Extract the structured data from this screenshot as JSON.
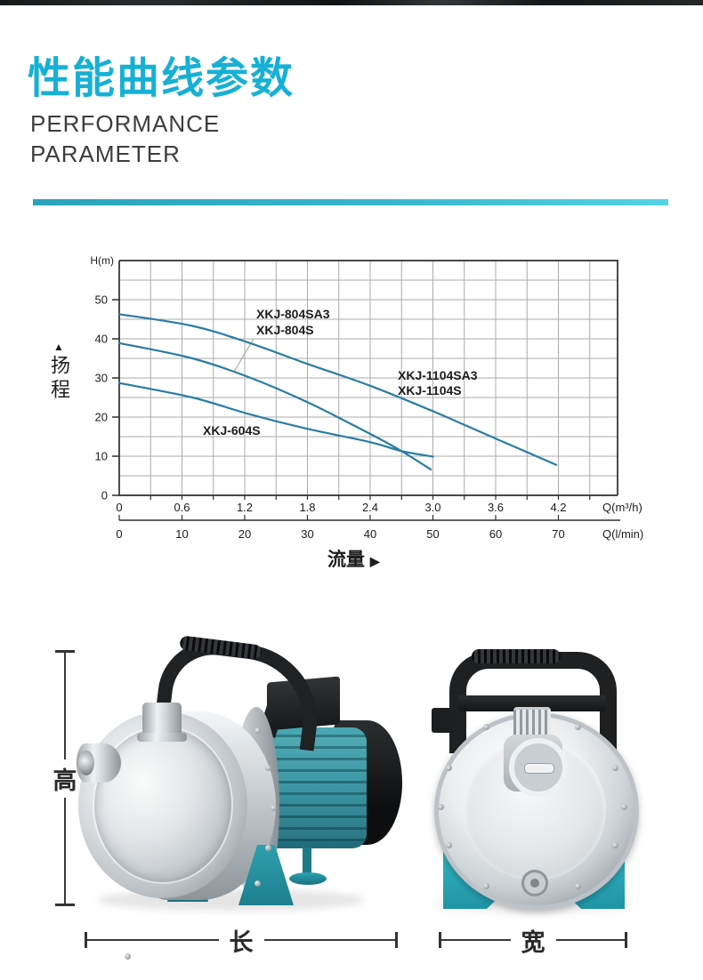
{
  "page": {
    "title_cjk": "性能曲线参数",
    "subtitle_lines": [
      "PERFORMANCE",
      "PARAMETER"
    ],
    "accent_color": "#17b0d5",
    "divider_gradient": [
      "#2aa3bb",
      "#55d3e3"
    ]
  },
  "chart_data": {
    "type": "line",
    "title": "",
    "y_axis": {
      "label": "H(m)",
      "ticks": [
        0,
        10,
        20,
        30,
        40,
        50
      ],
      "range": [
        0,
        60
      ],
      "title_cjk": "扬程",
      "title_arrow": "▲"
    },
    "x_axis": {
      "primary": {
        "label": "Q(m³/h)",
        "ticks": [
          0,
          0.6,
          1.2,
          1.8,
          2.4,
          3.0,
          3.6,
          4.2
        ],
        "range": [
          0,
          4.77
        ]
      },
      "secondary": {
        "label": "Q(l/min)",
        "ticks": [
          0,
          10,
          20,
          30,
          40,
          50,
          60,
          70
        ]
      },
      "title_cjk": "流量",
      "title_arrow": "▶"
    },
    "grid": {
      "x_step_m3h": 0.3,
      "y_step_m": 5,
      "color": "#ababab",
      "on": true
    },
    "curve_color": "#2a7ca4",
    "legend_position": "inline-annotations",
    "series": [
      {
        "id": "xkj-604s",
        "name_lines": [
          "XKJ-604S"
        ],
        "points": [
          [
            0,
            28.7
          ],
          [
            0.7,
            25.0
          ],
          [
            1.25,
            20.7
          ],
          [
            1.8,
            17.0
          ],
          [
            2.4,
            13.6
          ],
          [
            2.7,
            11.3
          ],
          [
            3.0,
            9.9
          ]
        ]
      },
      {
        "id": "xkj-804",
        "name_lines": [
          "XKJ-804SA3",
          "XKJ-804S"
        ],
        "points": [
          [
            0,
            38.9
          ],
          [
            0.7,
            35.0
          ],
          [
            1.25,
            30.1
          ],
          [
            1.8,
            23.8
          ],
          [
            2.4,
            15.7
          ],
          [
            2.7,
            11.3
          ],
          [
            2.98,
            6.6
          ]
        ]
      },
      {
        "id": "xkj-1104",
        "name_lines": [
          "XKJ-1104SA3",
          "XKJ-1104S"
        ],
        "points": [
          [
            0,
            46.3
          ],
          [
            0.7,
            43.3
          ],
          [
            1.25,
            38.9
          ],
          [
            1.8,
            33.6
          ],
          [
            2.4,
            28.0
          ],
          [
            3.0,
            21.5
          ],
          [
            3.6,
            14.5
          ],
          [
            4.18,
            7.8
          ]
        ]
      }
    ]
  },
  "dimensions": {
    "height_label": "高",
    "length_label": "长",
    "width_label": "宽"
  },
  "colors": {
    "motor_teal": "#2f8e9c",
    "base_teal": "#35b4c2",
    "steel_light": "#eceef0",
    "handle_black": "#1f2123"
  }
}
